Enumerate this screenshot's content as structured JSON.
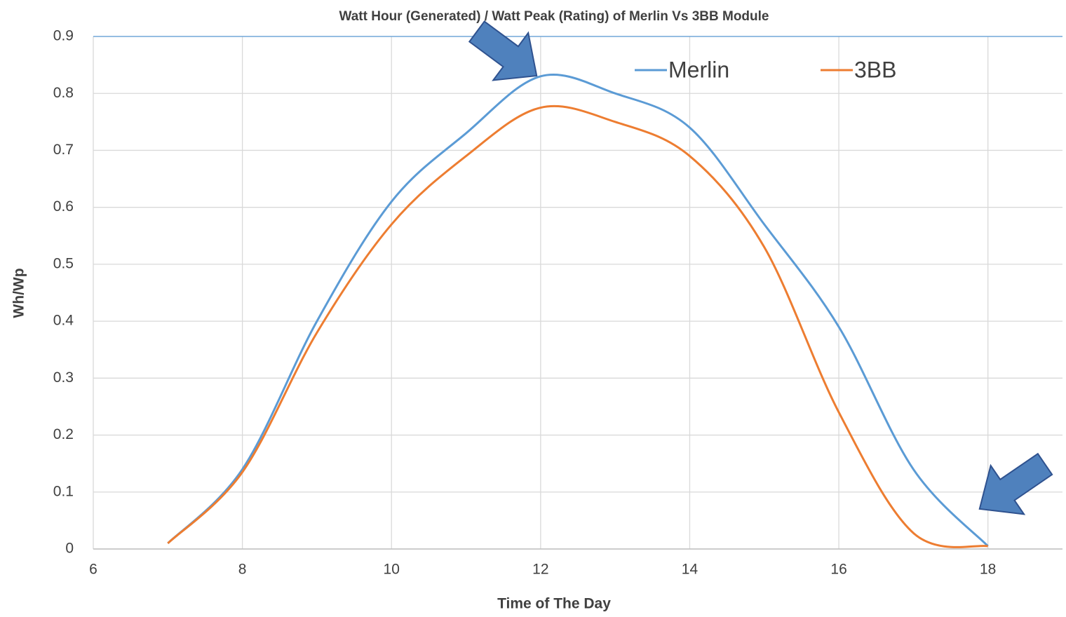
{
  "chart_data": {
    "type": "line",
    "title": "Watt Hour (Generated) / Watt Peak (Rating) of Merlin Vs 3BB Module",
    "xlabel": "Time of The Day",
    "ylabel": "Wh/Wp",
    "x": [
      7,
      8,
      9,
      10,
      11,
      12,
      13,
      14,
      15,
      16,
      17,
      18
    ],
    "series": [
      {
        "name": "Merlin",
        "color": "#5b9bd5",
        "values": [
          0.01,
          0.14,
          0.4,
          0.61,
          0.73,
          0.83,
          0.8,
          0.74,
          0.57,
          0.39,
          0.14,
          0.005
        ]
      },
      {
        "name": "3BB",
        "color": "#ed7d31",
        "values": [
          0.01,
          0.135,
          0.38,
          0.57,
          0.69,
          0.775,
          0.75,
          0.69,
          0.53,
          0.24,
          0.028,
          0.005
        ]
      }
    ],
    "xlim": [
      6,
      19
    ],
    "xticks": [
      6,
      8,
      10,
      12,
      14,
      16,
      18
    ],
    "ylim": [
      0,
      0.9
    ],
    "yticks": [
      0,
      0.1,
      0.2,
      0.3,
      0.4,
      0.5,
      0.6,
      0.7,
      0.8,
      0.9
    ],
    "grid": true,
    "legend": "top",
    "smooth": true
  }
}
